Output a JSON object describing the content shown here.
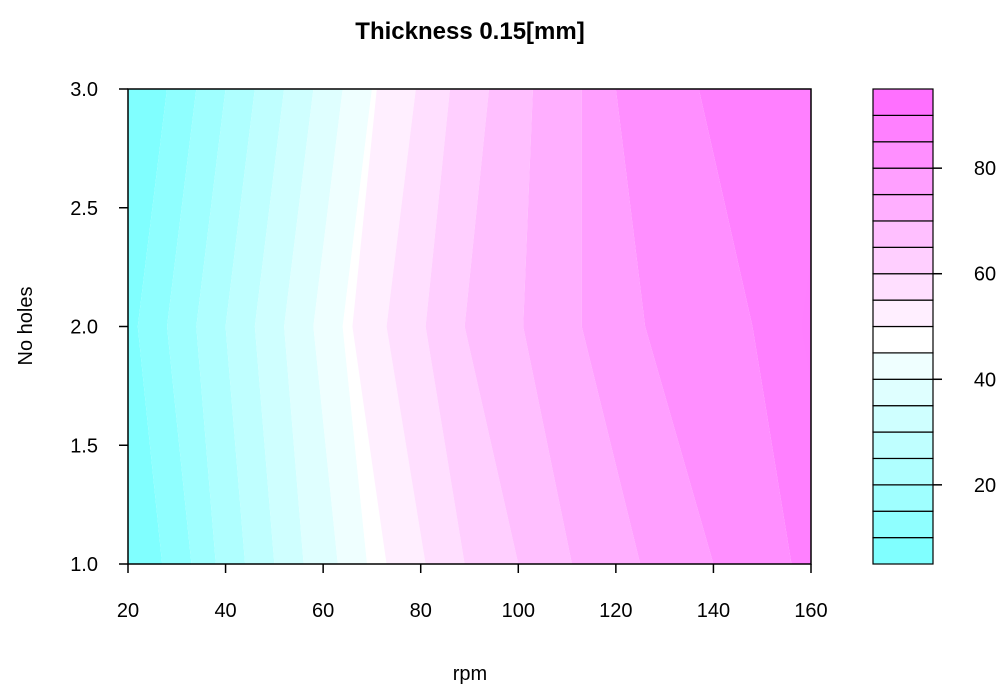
{
  "chart_data": {
    "type": "contour",
    "title": "Thickness 0.15[mm]",
    "xlabel": "rpm",
    "ylabel": "No holes",
    "xlim": [
      20,
      160
    ],
    "ylim": [
      1.0,
      3.0
    ],
    "xticks": [
      "20",
      "40",
      "60",
      "80",
      "100",
      "120",
      "140",
      "160"
    ],
    "yticks": [
      "1.0",
      "1.5",
      "2.0",
      "2.5",
      "3.0"
    ],
    "grid": false,
    "legend": {
      "placement": "right",
      "ticks": [
        "20",
        "40",
        "60",
        "80"
      ],
      "tick_values": [
        20,
        40,
        60,
        80
      ],
      "range": [
        5,
        95
      ],
      "levels": [
        5,
        10,
        15,
        20,
        25,
        30,
        35,
        40,
        45,
        50,
        55,
        60,
        65,
        70,
        75,
        80,
        85,
        90,
        95
      ],
      "colors": [
        "#80FFFF",
        "#8FFFFF",
        "#9FFFFF",
        "#AFFFFF",
        "#BFFFFF",
        "#CFFFFF",
        "#DFFFFF",
        "#EFFFFF",
        "#FFFFFF",
        "#FFEFFF",
        "#FFDFFF",
        "#FFCFFF",
        "#FFBFFF",
        "#FFAFFF",
        "#FF9FFF",
        "#FF8FFF",
        "#FF80FF",
        "#FF70FF"
      ]
    },
    "x": [
      20,
      160
    ],
    "y": [
      1.0,
      2.0,
      3.0
    ],
    "boundaries_at_y": [
      {
        "level": 10,
        "x": [
          27,
          22,
          28
        ]
      },
      {
        "level": 15,
        "x": [
          33,
          28,
          34
        ]
      },
      {
        "level": 20,
        "x": [
          38,
          34,
          40
        ]
      },
      {
        "level": 25,
        "x": [
          44,
          40,
          46
        ]
      },
      {
        "level": 30,
        "x": [
          50,
          46,
          52
        ]
      },
      {
        "level": 35,
        "x": [
          56,
          52,
          58
        ]
      },
      {
        "level": 40,
        "x": [
          63,
          58,
          64
        ]
      },
      {
        "level": 45,
        "x": [
          69,
          64,
          70
        ]
      },
      {
        "level": 50,
        "x": [
          73,
          66,
          71
        ]
      },
      {
        "level": 55,
        "x": [
          81,
          73,
          79
        ]
      },
      {
        "level": 60,
        "x": [
          89,
          81,
          86
        ]
      },
      {
        "level": 65,
        "x": [
          100,
          89,
          94
        ]
      },
      {
        "level": 70,
        "x": [
          111,
          101,
          103
        ]
      },
      {
        "level": 75,
        "x": [
          125,
          113,
          113
        ]
      },
      {
        "level": 80,
        "x": [
          140,
          126,
          120
        ]
      },
      {
        "level": 85,
        "x": [
          156,
          148,
          137
        ]
      },
      {
        "level": 90,
        "x": [
          161,
          161,
          161
        ]
      }
    ],
    "peak_band": {
      "level": 90,
      "x_start": 158,
      "y_range": [
        1.75,
        2.3
      ]
    }
  }
}
